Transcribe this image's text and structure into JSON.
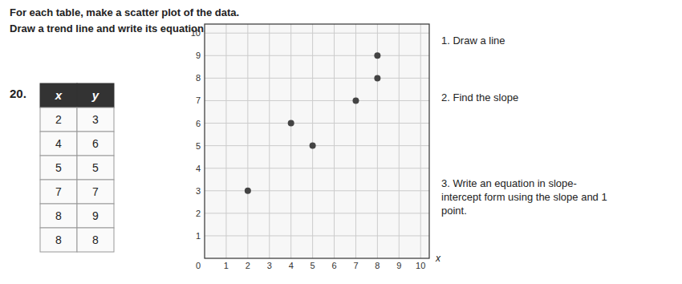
{
  "chart_data": {
    "type": "scatter",
    "title": "For each table, make a scatter plot of the data.",
    "subtitle": "Draw a trend line and write its equation.",
    "x_label": "x",
    "annotations": [
      "20.",
      "0",
      "1. Draw a line",
      "2. Find the slope",
      "3. Write an equation in slope-\nintercept form using the slope and 1\npoint."
    ],
    "table": {
      "header": [
        "x",
        "y"
      ],
      "rows": [
        [
          2,
          3
        ],
        [
          4,
          6
        ],
        [
          5,
          5
        ],
        [
          7,
          7
        ],
        [
          8,
          9
        ],
        [
          8,
          8
        ]
      ]
    },
    "x": [
      2,
      4,
      5,
      7,
      8,
      8
    ],
    "values": [
      3,
      6,
      5,
      7,
      9,
      8
    ],
    "color": "#444444",
    "xlim": [
      0,
      10.4
    ],
    "ylim": [
      0,
      10.4
    ],
    "xticks": [
      1,
      2,
      3,
      4,
      5,
      6,
      7,
      8,
      9,
      10
    ],
    "yticks": [
      1,
      2,
      3,
      4,
      5,
      6,
      7,
      8,
      9,
      10
    ],
    "grid": true
  }
}
